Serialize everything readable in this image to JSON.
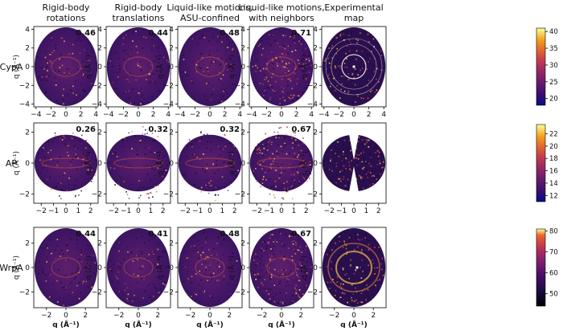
{
  "chart_data": {
    "type": "heatmap",
    "columns": [
      [
        "Rigid-body",
        "rotations"
      ],
      [
        "Rigid-body",
        "translations"
      ],
      [
        "Liquid-like motions,",
        "ASU-confined"
      ],
      [
        "Liquid-like motions,",
        "with neighbors"
      ],
      [
        "Experimental",
        "map"
      ]
    ],
    "rows": [
      {
        "label": "CypA",
        "ylabel": "q (Å⁻¹)",
        "xlabel": "",
        "axis_range": [
          -4.3,
          4.3
        ],
        "xticks": [
          -4,
          -2,
          0,
          2,
          4
        ],
        "yticks": [
          -4,
          -2,
          0,
          2,
          4
        ],
        "correlations": [
          "0.46",
          "0.44",
          "0.48",
          "0.71",
          ""
        ],
        "colorbar": {
          "range": [
            18,
            41
          ],
          "ticks": [
            20,
            25,
            30,
            35,
            40
          ]
        }
      },
      {
        "label": "AP",
        "ylabel": "q (Å⁻¹)",
        "xlabel": "",
        "axis_range": [
          -2.6,
          2.6
        ],
        "xticks": [
          -2,
          -1,
          0,
          1,
          2
        ],
        "yticks": [
          -2,
          0,
          2
        ],
        "correlations": [
          "0.26",
          "0.32",
          "0.32",
          "0.67",
          ""
        ],
        "colorbar": {
          "range": [
            11,
            23.5
          ],
          "ticks": [
            12,
            14,
            16,
            18,
            20,
            22
          ]
        }
      },
      {
        "label": "WrpA",
        "ylabel": "q (Å⁻¹)",
        "xlabel": "q (Å⁻¹)",
        "axis_range": [
          -3.3,
          3.3
        ],
        "xticks": [
          -2,
          0,
          2
        ],
        "yticks": [
          -2,
          0,
          2
        ],
        "correlations": [
          "0.44",
          "0.41",
          "0.48",
          "0.67",
          ""
        ],
        "colorbar": {
          "range": [
            44,
            81
          ],
          "ticks": [
            50,
            60,
            70,
            80
          ]
        }
      }
    ]
  }
}
